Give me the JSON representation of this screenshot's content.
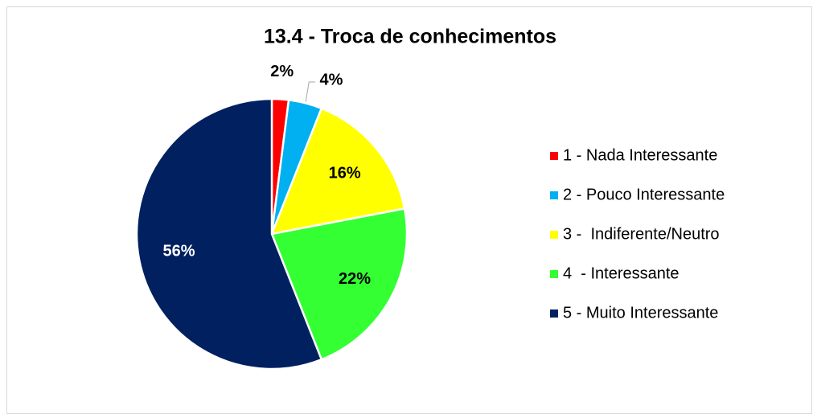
{
  "chart_data": {
    "type": "pie",
    "title": "13.4 - Troca de conhecimentos",
    "categories": [
      "1 - Nada Interessante",
      "2 - Pouco Interessante",
      "3 -  Indiferente/Neutro",
      "4  - Interessante",
      "5 - Muito Interessante"
    ],
    "values": [
      2,
      4,
      16,
      22,
      56
    ],
    "value_labels": [
      "2%",
      "4%",
      "16%",
      "22%",
      "56%"
    ],
    "colors": [
      "#ff0000",
      "#00b0f0",
      "#ffff00",
      "#33ff33",
      "#002060"
    ],
    "legend": "right"
  }
}
